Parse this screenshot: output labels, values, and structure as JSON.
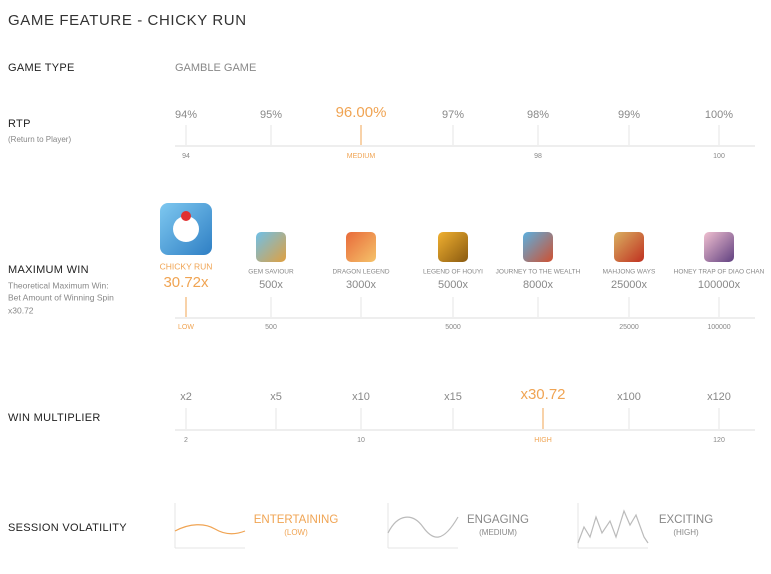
{
  "title": "GAME FEATURE - CHICKY RUN",
  "game_type": {
    "label": "GAME TYPE",
    "value": "GAMBLE GAME"
  },
  "rtp": {
    "label": "RTP",
    "sublabel": "(Return to Player)",
    "items": [
      {
        "label": "94%",
        "scale": "94"
      },
      {
        "label": "95%"
      },
      {
        "label": "96.00%",
        "scale": "MEDIUM"
      },
      {
        "label": "97%"
      },
      {
        "label": "98%",
        "scale": "98"
      },
      {
        "label": "99%"
      },
      {
        "label": "100%",
        "scale": "100"
      }
    ]
  },
  "max_win": {
    "label": "MAXIMUM WIN",
    "sublabel": [
      "Theoretical Maximum Win:",
      "Bet Amount of Winning Spin",
      "x30.72"
    ],
    "items": [
      {
        "name": "CHICKY RUN",
        "label": "30.72x",
        "scale": "LOW"
      },
      {
        "name": "GEM SAVIOUR",
        "label": "500x",
        "scale": "500"
      },
      {
        "name": "DRAGON LEGEND",
        "label": "3000x"
      },
      {
        "name": "LEGEND OF HOUYI",
        "label": "5000x",
        "scale": "5000"
      },
      {
        "name": "JOURNEY TO THE WEALTH",
        "label": "8000x"
      },
      {
        "name": "MAHJONG WAYS",
        "label": "25000x",
        "scale": "25000"
      },
      {
        "name": "HONEY TRAP OF DIAO CHAN",
        "label": "100000x",
        "scale": "100000"
      }
    ]
  },
  "win_multiplier": {
    "label": "WIN MULTIPLIER",
    "items": [
      {
        "label": "x2",
        "scale": "2"
      },
      {
        "label": "x5"
      },
      {
        "label": "x10",
        "scale": "10"
      },
      {
        "label": "x15"
      },
      {
        "label": "x30.72",
        "scale": "HIGH"
      },
      {
        "label": "x100"
      },
      {
        "label": "x120",
        "scale": "120"
      }
    ]
  },
  "volatility": {
    "label": "SESSION VOLATILITY",
    "items": [
      {
        "name": "ENTERTAINING",
        "level": "(LOW)"
      },
      {
        "name": "ENGAGING",
        "level": "(MEDIUM)"
      },
      {
        "name": "EXCITING",
        "level": "(HIGH)"
      }
    ]
  }
}
